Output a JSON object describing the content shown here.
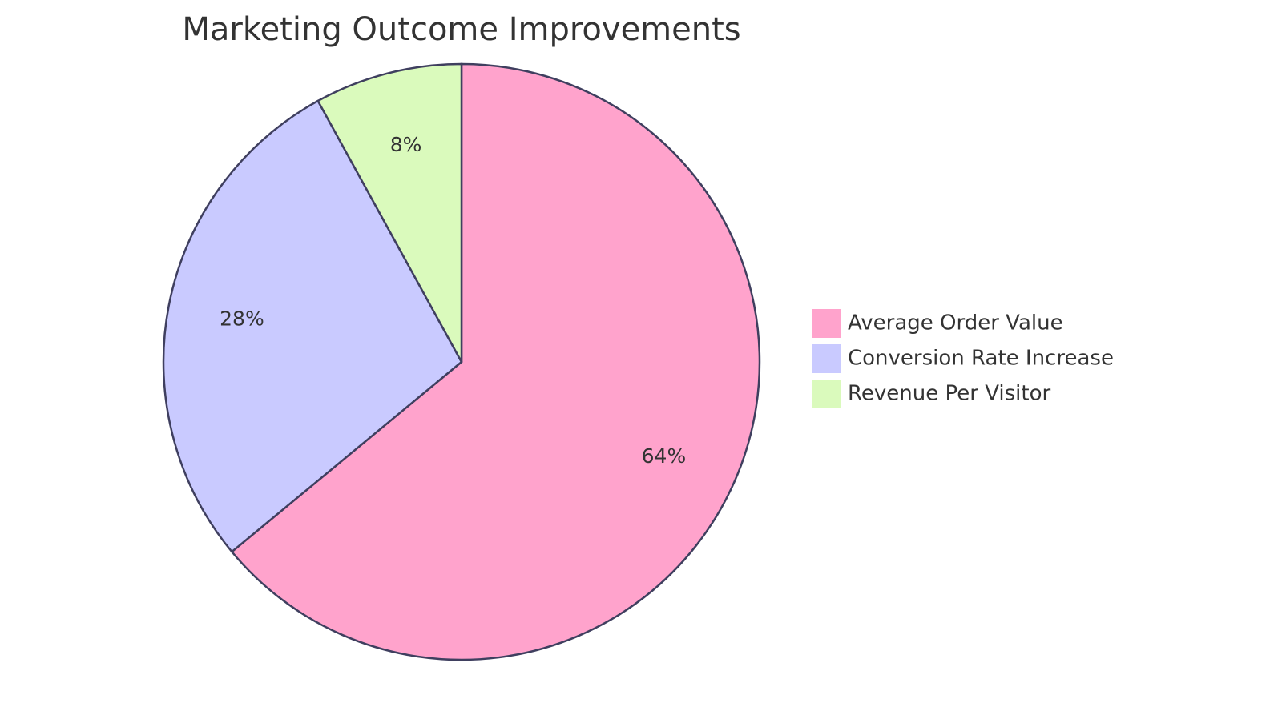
{
  "chart_data": {
    "type": "pie",
    "title": "Marketing Outcome Improvements",
    "legend_position": "right",
    "slices": [
      {
        "label": "Average Order Value",
        "value": 64,
        "display": "64%",
        "color": "#ffa3cc"
      },
      {
        "label": "Conversion Rate Increase",
        "value": 28,
        "display": "28%",
        "color": "#c9caff"
      },
      {
        "label": "Revenue Per Visitor",
        "value": 8,
        "display": "8%",
        "color": "#dafabc"
      }
    ]
  }
}
